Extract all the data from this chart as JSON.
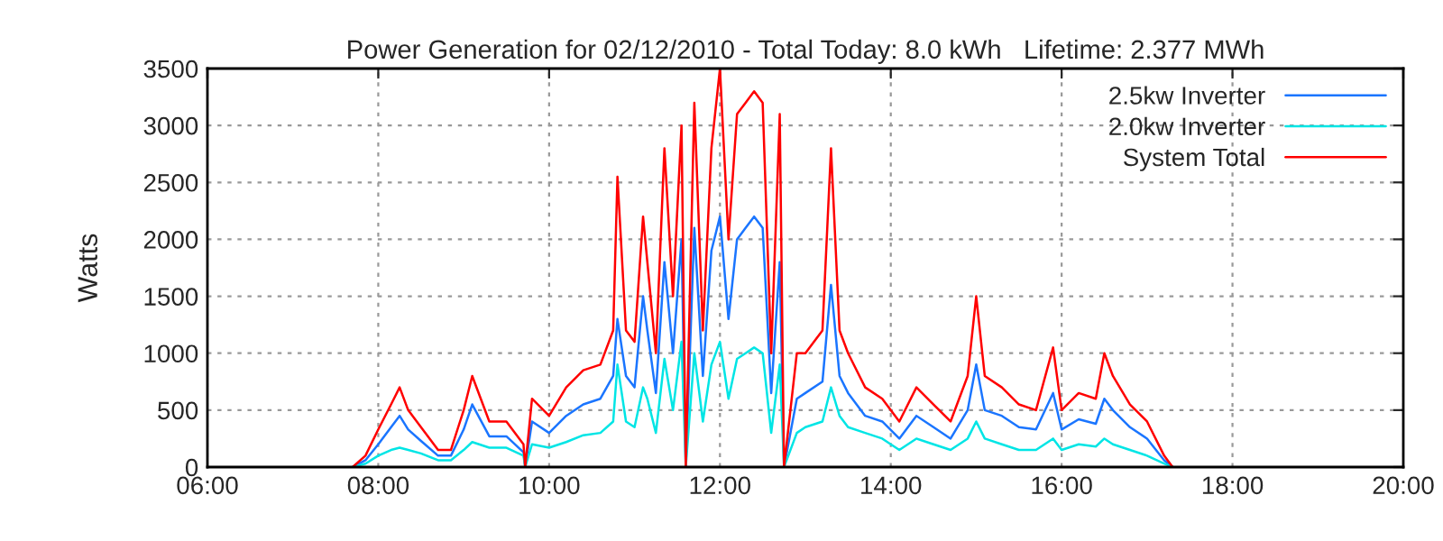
{
  "chart_data": {
    "type": "line",
    "title": "Power Generation for 02/12/2010 - Total Today: 8.0 kWh   Lifetime: 2.377 MWh",
    "ylabel": "Watts",
    "x": [
      7.7,
      7.85,
      8.0,
      8.15,
      8.25,
      8.35,
      8.5,
      8.7,
      8.85,
      9.0,
      9.1,
      9.3,
      9.5,
      9.7,
      9.72,
      9.8,
      10.0,
      10.2,
      10.4,
      10.6,
      10.75,
      10.8,
      10.9,
      11.0,
      11.1,
      11.15,
      11.25,
      11.35,
      11.45,
      11.55,
      11.6,
      11.7,
      11.8,
      11.9,
      12.0,
      12.1,
      12.2,
      12.3,
      12.4,
      12.5,
      12.6,
      12.7,
      12.75,
      12.9,
      13.0,
      13.2,
      13.3,
      13.4,
      13.5,
      13.7,
      13.9,
      14.1,
      14.3,
      14.5,
      14.7,
      14.9,
      15.0,
      15.1,
      15.3,
      15.5,
      15.7,
      15.9,
      16.0,
      16.2,
      16.4,
      16.5,
      16.6,
      16.8,
      17.0,
      17.2,
      17.3
    ],
    "series": [
      {
        "name": "2.5kw Inverter",
        "color": "#1a75ff",
        "values": [
          0,
          60,
          200,
          350,
          450,
          330,
          230,
          100,
          100,
          330,
          550,
          270,
          270,
          130,
          0,
          400,
          300,
          450,
          550,
          600,
          800,
          1300,
          800,
          700,
          1500,
          1200,
          650,
          1800,
          1000,
          2000,
          0,
          2100,
          800,
          1900,
          2200,
          1300,
          2000,
          2100,
          2200,
          2100,
          650,
          1800,
          0,
          600,
          650,
          750,
          1600,
          800,
          650,
          450,
          400,
          250,
          450,
          350,
          250,
          500,
          900,
          500,
          450,
          350,
          330,
          650,
          330,
          420,
          380,
          600,
          500,
          350,
          250,
          60,
          0
        ]
      },
      {
        "name": "2.0kw Inverter",
        "color": "#00e5e5",
        "values": [
          0,
          30,
          100,
          150,
          170,
          150,
          120,
          60,
          60,
          150,
          220,
          170,
          170,
          100,
          0,
          200,
          170,
          220,
          280,
          300,
          400,
          900,
          400,
          350,
          700,
          600,
          300,
          950,
          500,
          1100,
          0,
          1000,
          400,
          900,
          1100,
          600,
          950,
          1000,
          1050,
          1000,
          300,
          900,
          0,
          300,
          350,
          400,
          700,
          450,
          350,
          300,
          250,
          150,
          250,
          200,
          150,
          250,
          400,
          250,
          200,
          150,
          150,
          250,
          150,
          200,
          180,
          250,
          200,
          150,
          100,
          30,
          0
        ]
      },
      {
        "name": "System Total",
        "color": "#ff0000",
        "values": [
          0,
          100,
          330,
          550,
          700,
          500,
          350,
          150,
          150,
          500,
          800,
          400,
          400,
          200,
          0,
          600,
          450,
          700,
          850,
          900,
          1200,
          2550,
          1200,
          1100,
          2200,
          1800,
          1000,
          2800,
          1500,
          3000,
          0,
          3200,
          1200,
          2800,
          3500,
          2000,
          3100,
          3200,
          3300,
          3200,
          1000,
          3100,
          0,
          1000,
          1000,
          1200,
          2800,
          1200,
          1000,
          700,
          600,
          400,
          700,
          550,
          400,
          800,
          1500,
          800,
          700,
          550,
          500,
          1050,
          500,
          650,
          600,
          1000,
          800,
          550,
          400,
          100,
          0
        ]
      }
    ],
    "xlim": [
      6,
      20
    ],
    "xticks": [
      {
        "value": 6,
        "label": "06:00"
      },
      {
        "value": 8,
        "label": "08:00"
      },
      {
        "value": 10,
        "label": "10:00"
      },
      {
        "value": 12,
        "label": "12:00"
      },
      {
        "value": 14,
        "label": "14:00"
      },
      {
        "value": 16,
        "label": "16:00"
      },
      {
        "value": 18,
        "label": "18:00"
      },
      {
        "value": 20,
        "label": "20:00"
      }
    ],
    "ylim": [
      0,
      3500
    ],
    "yticks": [
      0,
      500,
      1000,
      1500,
      2000,
      2500,
      3000,
      3500
    ],
    "grid": true,
    "legend": "top right",
    "marker": "none",
    "line_style": "solid"
  }
}
